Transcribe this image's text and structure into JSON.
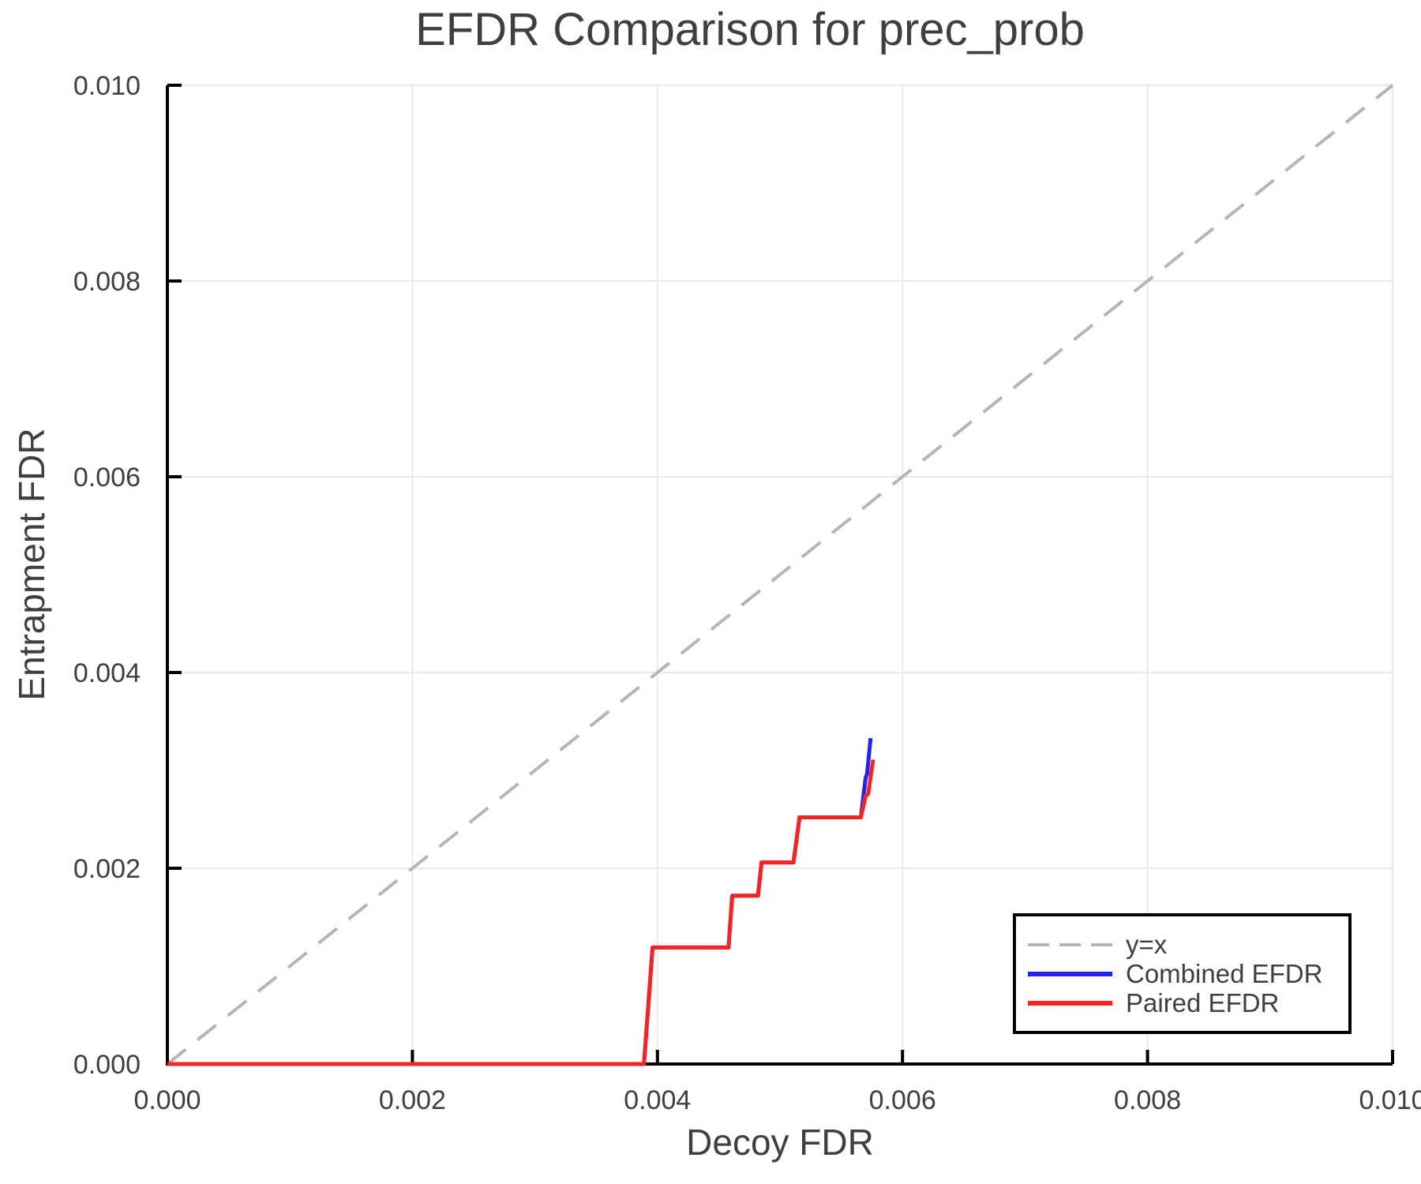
{
  "chart": {
    "title": "EFDR Comparison for prec_prob",
    "xlabel": "Decoy FDR",
    "ylabel": "Entrapment FDR"
  },
  "colors": {
    "background": "#ffffff",
    "text": "#3f3f3f",
    "grid": "#e9e9e9",
    "axis": "#000000",
    "reference": "#b5b5b5",
    "combined": "#2323f0",
    "paired": "#fa2323"
  },
  "legend": {
    "items": [
      {
        "label": "y=x",
        "color": "#b5b5b5",
        "dashed": true
      },
      {
        "label": "Combined EFDR",
        "color": "#2323f0",
        "dashed": false
      },
      {
        "label": "Paired EFDR",
        "color": "#fa2323",
        "dashed": false
      }
    ]
  },
  "chart_data": {
    "type": "line",
    "title": "EFDR Comparison for prec_prob",
    "xlabel": "Decoy FDR",
    "ylabel": "Entrapment FDR",
    "xlim": [
      0.0,
      0.01
    ],
    "ylim": [
      0.0,
      0.01
    ],
    "xticks": [
      0.0,
      0.002,
      0.004,
      0.006,
      0.008,
      0.01
    ],
    "xtick_labels": [
      "0.000",
      "0.002",
      "0.004",
      "0.006",
      "0.008",
      "0.010"
    ],
    "yticks": [
      0.0,
      0.002,
      0.004,
      0.006,
      0.008,
      0.01
    ],
    "ytick_labels": [
      "0.000",
      "0.002",
      "0.004",
      "0.006",
      "0.008",
      "0.010"
    ],
    "grid": true,
    "legend_position": "bottom-right",
    "reference_line": {
      "name": "y=x",
      "from": [
        0.0,
        0.0
      ],
      "to": [
        0.01,
        0.01
      ],
      "color": "#b5b5b5",
      "style": "dashed"
    },
    "series": [
      {
        "name": "Combined EFDR",
        "color": "#2323f0",
        "x": [
          0.0,
          0.00389,
          0.00396,
          0.00458,
          0.00461,
          0.00482,
          0.00485,
          0.00511,
          0.00516,
          0.00566,
          0.0057,
          0.00571,
          0.00574
        ],
        "y": [
          0.0,
          0.0,
          0.00119,
          0.00119,
          0.00172,
          0.00172,
          0.00206,
          0.00206,
          0.00252,
          0.00252,
          0.00293,
          0.00296,
          0.00333
        ]
      },
      {
        "name": "Paired EFDR",
        "color": "#fa2323",
        "x": [
          0.0,
          0.00389,
          0.00396,
          0.00458,
          0.00461,
          0.00482,
          0.00485,
          0.00511,
          0.00516,
          0.00566,
          0.0057,
          0.00572,
          0.00576
        ],
        "y": [
          0.0,
          0.0,
          0.00119,
          0.00119,
          0.00172,
          0.00172,
          0.00206,
          0.00206,
          0.00252,
          0.00252,
          0.00274,
          0.00276,
          0.00311
        ]
      }
    ]
  }
}
